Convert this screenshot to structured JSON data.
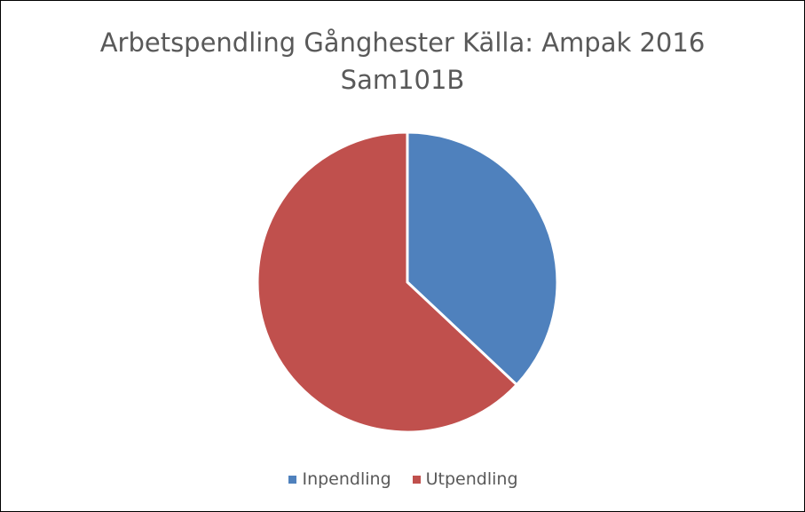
{
  "chart_data": {
    "type": "pie",
    "title": "Arbetspendling Gånghester Källa: Ampak 2016 Sam101B",
    "categories": [
      "Inpendling",
      "Utpendling"
    ],
    "values": [
      37,
      63
    ],
    "colors": [
      "#4f81bd",
      "#c0504d"
    ],
    "legend": "bottom"
  }
}
